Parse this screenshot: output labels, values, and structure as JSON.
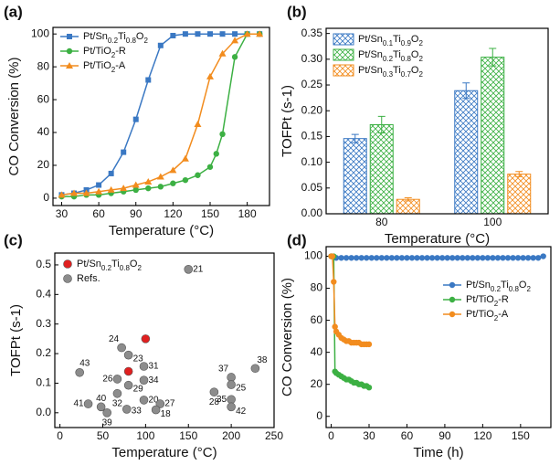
{
  "chart_data": [
    {
      "type": "line",
      "panel_label": "(a)",
      "xlabel": "Temperature (°C)",
      "ylabel": "CO Conversion (%)",
      "xlim": [
        23,
        198
      ],
      "xticks": [
        30,
        60,
        90,
        120,
        150,
        180
      ],
      "ylim": [
        -4.5,
        104
      ],
      "yticks": [
        0,
        20,
        40,
        60,
        80,
        100
      ],
      "legend": "top-left",
      "series": [
        {
          "name": "Pt/Sn0.2Ti0.8O2",
          "color": "#3a78c3",
          "marker": "square",
          "x": [
            30,
            40,
            50,
            60,
            70,
            80,
            90,
            100,
            110,
            120,
            130,
            140,
            150,
            160,
            170,
            180,
            190
          ],
          "values": [
            2,
            3,
            5,
            8,
            15,
            28,
            48,
            72,
            93,
            99,
            100,
            100,
            100,
            100,
            100,
            100,
            100
          ]
        },
        {
          "name": "Pt/TiO2-R",
          "color": "#3cb043",
          "marker": "circle",
          "x": [
            30,
            40,
            50,
            60,
            70,
            80,
            90,
            100,
            110,
            120,
            130,
            140,
            150,
            155,
            160,
            170,
            180,
            190
          ],
          "values": [
            1,
            1,
            2,
            2,
            3,
            4,
            5,
            6,
            7,
            9,
            11,
            14,
            19,
            27,
            39,
            86,
            100,
            100
          ]
        },
        {
          "name": "Pt/TiO2-A",
          "color": "#f28c1e",
          "marker": "triangle",
          "x": [
            30,
            40,
            50,
            60,
            70,
            80,
            90,
            100,
            110,
            120,
            130,
            140,
            150,
            160,
            170,
            180,
            190
          ],
          "values": [
            2,
            3,
            3,
            4,
            5,
            6,
            8,
            10,
            13,
            17,
            24,
            45,
            74,
            88,
            96,
            100,
            100
          ]
        }
      ]
    },
    {
      "type": "bar",
      "panel_label": "(b)",
      "xlabel": "Temperature (°C)",
      "ylabel": "TOFPt (s-1)",
      "categories": [
        "80",
        "100"
      ],
      "ylim": [
        0,
        0.36
      ],
      "yticks": [
        {
          "value": 0,
          "label": "0.00"
        },
        0.05,
        {
          "value": 0.1,
          "label": "0.10"
        },
        0.15,
        {
          "value": 0.2,
          "label": "0.20"
        },
        0.25,
        {
          "value": 0.3,
          "label": "0.30"
        },
        0.35
      ],
      "legend": "top-left",
      "series": [
        {
          "name": "Pt/Sn0.1Ti0.9O2",
          "color": "#3a78c3",
          "values": [
            0.146,
            0.239
          ],
          "errors": [
            0.008,
            0.015
          ]
        },
        {
          "name": "Pt/Sn0.2Ti0.8O2",
          "color": "#3cb043",
          "values": [
            0.173,
            0.304
          ],
          "errors": [
            0.016,
            0.017
          ]
        },
        {
          "name": "Pt/Sn0.3Ti0.7O2",
          "color": "#f28c1e",
          "values": [
            0.028,
            0.077
          ],
          "errors": [
            0.003,
            0.005
          ]
        }
      ]
    },
    {
      "type": "scatter",
      "panel_label": "(c)",
      "xlabel": "Temperature (°C)",
      "ylabel": "TOFPt (s-1)",
      "xlim": [
        -6,
        250
      ],
      "xticks": [
        0,
        50,
        100,
        150,
        200,
        250
      ],
      "ylim": [
        -0.05,
        0.54
      ],
      "yticks": [
        {
          "value": 0,
          "label": "0.0"
        },
        0.1,
        0.2,
        0.3,
        0.4,
        0.5
      ],
      "legend": "top-left",
      "series": [
        {
          "name": "Pt/Sn0.2Ti0.8O2",
          "color": "#e02020",
          "x": [
            100,
            80
          ],
          "values": [
            0.25,
            0.14
          ]
        },
        {
          "name": "Refs.",
          "color": "#8c8c8c",
          "x": [
            150,
            72,
            80,
            98,
            23,
            67,
            80,
            98,
            67,
            33,
            48,
            55,
            78,
            98,
            117,
            112,
            180,
            200,
            200,
            228,
            200,
            200
          ],
          "values": [
            0.485,
            0.22,
            0.195,
            0.157,
            0.136,
            0.114,
            0.093,
            0.11,
            0.065,
            0.03,
            0.02,
            0.0,
            0.012,
            0.043,
            0.03,
            0.01,
            0.07,
            0.12,
            0.095,
            0.15,
            0.045,
            0.02
          ],
          "labels": [
            "21",
            "24",
            "23",
            "31",
            "43",
            "26",
            "29",
            "34",
            "32",
            "41",
            "40",
            "39",
            "33",
            "20",
            "27",
            "18",
            "28",
            "37",
            "25",
            "38",
            "35",
            "42"
          ]
        }
      ]
    },
    {
      "type": "line",
      "panel_label": "(d)",
      "xlabel": "Time (h)",
      "ylabel": "CO Conversion (%)",
      "xlim": [
        -4,
        174
      ],
      "xticks": [
        0,
        30,
        60,
        90,
        120,
        150
      ],
      "ylim": [
        -7,
        106
      ],
      "yticks": [
        0,
        20,
        40,
        60,
        80,
        100
      ],
      "legend": "right",
      "series": [
        {
          "name": "Pt/Sn0.2Ti0.8O2",
          "color": "#3a78c3",
          "marker": "circle",
          "x": [
            0,
            4,
            8,
            12,
            16,
            20,
            24,
            28,
            32,
            36,
            40,
            44,
            48,
            52,
            56,
            60,
            64,
            68,
            72,
            76,
            80,
            84,
            88,
            92,
            96,
            100,
            104,
            108,
            112,
            116,
            120,
            124,
            128,
            132,
            136,
            140,
            144,
            148,
            152,
            156,
            160,
            164,
            168
          ],
          "values": [
            100,
            99,
            99,
            99,
            99,
            99,
            99,
            99,
            99,
            99,
            99,
            99,
            99,
            99,
            99,
            99,
            99,
            99,
            99,
            99,
            99,
            99,
            99,
            99,
            99,
            99,
            99,
            99,
            99,
            99,
            99,
            99,
            99,
            99,
            99,
            99,
            99,
            99,
            99,
            99,
            99,
            99,
            100
          ]
        },
        {
          "name": "Pt/TiO2-R",
          "color": "#3cb043",
          "marker": "circle",
          "x": [
            0,
            1,
            2,
            3,
            4,
            6,
            8,
            10,
            12,
            14,
            16,
            18,
            20,
            22,
            24,
            26,
            28,
            30
          ],
          "values": [
            100,
            100,
            100,
            28,
            27,
            26,
            25,
            24,
            23,
            23,
            22,
            21,
            21,
            20,
            20,
            19,
            19,
            18
          ]
        },
        {
          "name": "Pt/TiO2-A",
          "color": "#f28c1e",
          "marker": "circle",
          "x": [
            0,
            1,
            2,
            3,
            4,
            6,
            8,
            10,
            12,
            14,
            16,
            18,
            20,
            22,
            24,
            26,
            28,
            30
          ],
          "values": [
            100,
            100,
            84,
            56,
            53,
            51,
            49,
            48,
            47,
            47,
            46,
            46,
            46,
            46,
            45,
            45,
            45,
            45
          ]
        }
      ]
    }
  ]
}
